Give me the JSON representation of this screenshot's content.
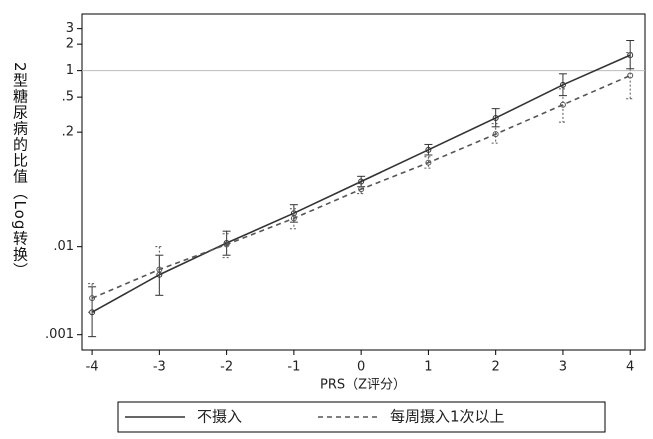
{
  "chart_data": {
    "type": "line",
    "x_label": "PRS（Z评分）",
    "y_label": "2型糖尿病的比值（Log转换）",
    "log_y": true,
    "refline": 1,
    "x": [
      -4,
      -3,
      -2,
      -1,
      0,
      1,
      2,
      3,
      4
    ],
    "xlim": [
      -4.15,
      4.22
    ],
    "xticks": [
      -4,
      -3,
      -2,
      -1,
      0,
      1,
      2,
      3,
      4
    ],
    "ylim": [
      0.00067,
      4.4
    ],
    "yticks": [
      {
        "value": 0.001,
        "label": ".001"
      },
      {
        "value": 0.01,
        "label": ".01"
      },
      {
        "value": 0.2,
        "label": ".2"
      },
      {
        "value": 0.5,
        "label": ".5"
      },
      1,
      2,
      3
    ],
    "series": [
      {
        "name": "不摄入",
        "color": "#333333",
        "dash": "solid",
        "values": [
          0.0018,
          0.0048,
          0.011,
          0.024,
          0.055,
          0.126,
          0.29,
          0.69,
          1.5
        ],
        "lower": [
          0.00095,
          0.0028,
          0.008,
          0.019,
          0.048,
          0.11,
          0.23,
          0.52,
          1.05
        ],
        "upper": [
          0.0035,
          0.008,
          0.015,
          0.03,
          0.063,
          0.145,
          0.37,
          0.92,
          2.2
        ]
      },
      {
        "name": "每周摄入1次以上",
        "color": "#555555",
        "dash": "dashed",
        "values": [
          0.0026,
          0.0055,
          0.0106,
          0.021,
          0.045,
          0.09,
          0.19,
          0.41,
          0.88
        ],
        "lower": [
          0.0018,
          0.0028,
          0.0075,
          0.016,
          0.04,
          0.078,
          0.15,
          0.26,
          0.48
        ],
        "upper": [
          0.0038,
          0.01,
          0.014,
          0.027,
          0.052,
          0.105,
          0.25,
          0.62,
          1.6
        ]
      }
    ]
  }
}
